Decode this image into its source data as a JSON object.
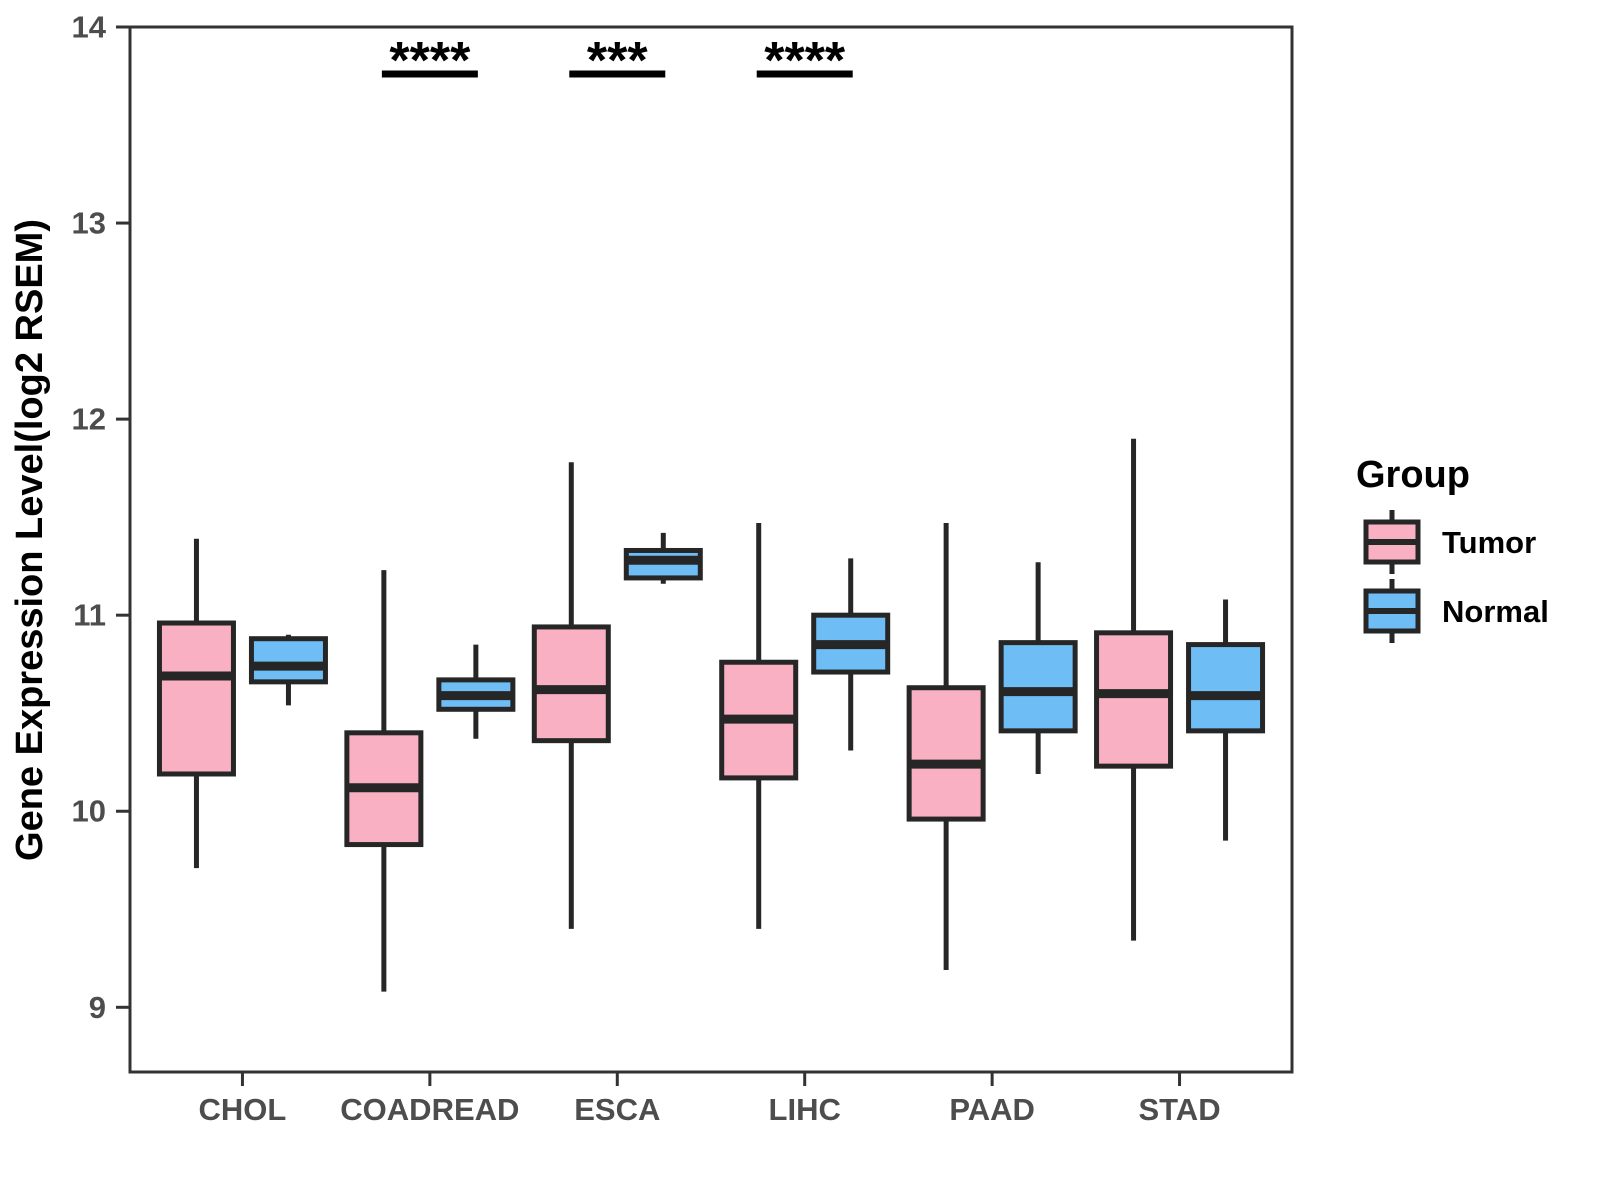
{
  "figure": {
    "background": "#FFFFFF"
  },
  "chart_data": {
    "type": "boxplot",
    "title": "",
    "xlabel": "",
    "ylabel": "Gene Expression Level(log2 RSEM)",
    "ylim": [
      8.67,
      14.0
    ],
    "yticks": [
      9,
      10,
      11,
      12,
      13,
      14
    ],
    "categories": [
      "CHOL",
      "COADREAD",
      "ESCA",
      "LIHC",
      "PAAD",
      "STAD"
    ],
    "legend": {
      "title": "Group",
      "entries": [
        "Tumor",
        "Normal"
      ]
    },
    "colors": {
      "tumor_fill": "#FAB0C3",
      "normal_fill": "#6EBEF5",
      "line": "#262626",
      "panel_border": "#333333",
      "tick_text": "#4D4D4D",
      "axis_title_text": "#000000",
      "annotation": "#000000"
    },
    "series": [
      {
        "name": "Tumor",
        "fill": "#FAB0C3",
        "boxes": [
          {
            "category": "CHOL",
            "min": 9.71,
            "q1": 10.19,
            "median": 10.69,
            "q3": 10.96,
            "max": 11.39
          },
          {
            "category": "COADREAD",
            "min": 9.08,
            "q1": 9.83,
            "median": 10.12,
            "q3": 10.4,
            "max": 11.23
          },
          {
            "category": "ESCA",
            "min": 9.4,
            "q1": 10.36,
            "median": 10.62,
            "q3": 10.94,
            "max": 11.78
          },
          {
            "category": "LIHC",
            "min": 9.4,
            "q1": 10.17,
            "median": 10.47,
            "q3": 10.76,
            "max": 11.47
          },
          {
            "category": "PAAD",
            "min": 9.19,
            "q1": 9.96,
            "median": 10.24,
            "q3": 10.63,
            "max": 11.47
          },
          {
            "category": "STAD",
            "min": 9.34,
            "q1": 10.23,
            "median": 10.6,
            "q3": 10.91,
            "max": 11.9
          }
        ]
      },
      {
        "name": "Normal",
        "fill": "#6EBEF5",
        "boxes": [
          {
            "category": "CHOL",
            "min": 10.54,
            "q1": 10.66,
            "median": 10.74,
            "q3": 10.88,
            "max": 10.9
          },
          {
            "category": "COADREAD",
            "min": 10.37,
            "q1": 10.52,
            "median": 10.59,
            "q3": 10.67,
            "max": 10.85
          },
          {
            "category": "ESCA",
            "min": 11.16,
            "q1": 11.19,
            "median": 11.28,
            "q3": 11.33,
            "max": 11.42
          },
          {
            "category": "LIHC",
            "min": 10.31,
            "q1": 10.71,
            "median": 10.85,
            "q3": 11.0,
            "max": 11.29
          },
          {
            "category": "PAAD",
            "min": 10.19,
            "q1": 10.41,
            "median": 10.61,
            "q3": 10.86,
            "max": 11.27
          },
          {
            "category": "STAD",
            "min": 9.85,
            "q1": 10.41,
            "median": 10.59,
            "q3": 10.85,
            "max": 11.08
          }
        ]
      }
    ],
    "significance": [
      {
        "category": "COADREAD",
        "label": "****"
      },
      {
        "category": "ESCA",
        "label": "***"
      },
      {
        "category": "LIHC",
        "label": "****"
      }
    ],
    "layout": {
      "legend_position": "right",
      "grid": false,
      "panel_border": true
    }
  }
}
